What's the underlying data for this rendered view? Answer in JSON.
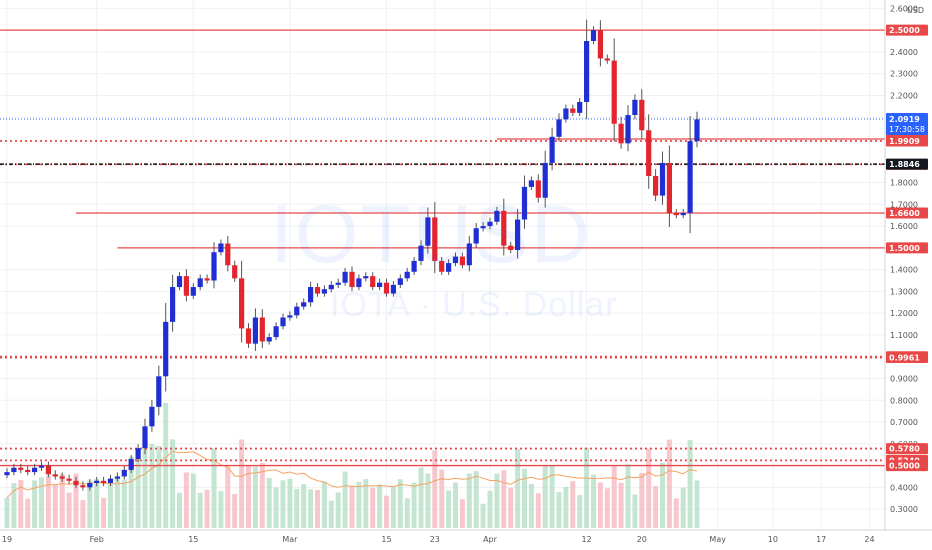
{
  "watermark": {
    "ticker": "IOTUSD",
    "description": "IOTA · U.S. Dollar"
  },
  "colors": {
    "up": "#1f2fd4",
    "down": "#e3252e",
    "level": "#e84848",
    "volume_up": "#b5dec7",
    "volume_down": "#f6b8c0",
    "volume_ma": "#f4a460",
    "grid": "#eef0f4",
    "axis_text": "#555555",
    "current": "#2962ff"
  },
  "chart_data": {
    "type": "candlestick",
    "currency": "USD",
    "price_axis": {
      "ylim": [
        0.25,
        2.62
      ],
      "ticks": [
        "2.6000",
        "2.4000",
        "2.3000",
        "2.2000",
        "2.1000",
        "1.8000",
        "1.7000",
        "1.6000",
        "1.4000",
        "1.3000",
        "1.2000",
        "1.1000",
        "0.9000",
        "0.8000",
        "0.7000",
        "0.6000",
        "0.4000",
        "0.3000"
      ],
      "tick_values": [
        2.6,
        2.4,
        2.3,
        2.2,
        2.1,
        1.8,
        1.7,
        1.6,
        1.4,
        1.3,
        1.2,
        1.1,
        0.9,
        0.8,
        0.7,
        0.6,
        0.4,
        0.3
      ]
    },
    "time_axis": {
      "labels": [
        "19",
        "Feb",
        "15",
        "Mar",
        "15",
        "23",
        "Apr",
        "12",
        "20",
        "May",
        "10",
        "17",
        "24"
      ],
      "label_index": [
        0,
        13,
        27,
        41,
        55,
        62,
        70,
        84,
        92,
        103,
        111,
        118,
        125
      ]
    },
    "current_price": {
      "value": 2.0919,
      "label": "2.0919",
      "countdown": "17:30:58"
    },
    "cursor_price": {
      "value": 1.8846,
      "label": "1.8846"
    },
    "levels": [
      {
        "value": 2.5,
        "label": "2.5000",
        "style": "solid",
        "start_index": 0
      },
      {
        "value": 2.0,
        "label": "2.0000",
        "style": "solid",
        "start_index": 71
      },
      {
        "value": 1.9909,
        "label": "1.9909",
        "style": "dotted",
        "start_index": 0
      },
      {
        "value": 1.8835,
        "label": "1.8835",
        "style": "dotted",
        "start_index": 0
      },
      {
        "value": 1.66,
        "label": "1.6600",
        "style": "solid",
        "start_index": 10
      },
      {
        "value": 1.5,
        "label": "1.5000",
        "style": "solid",
        "start_index": 16
      },
      {
        "value": 1.0,
        "label": "1.0000",
        "style": "dotted",
        "start_index": 0
      },
      {
        "value": 0.9961,
        "label": "0.9961",
        "style": "dotted",
        "start_index": 0
      },
      {
        "value": 0.578,
        "label": "0.5780",
        "style": "dotted",
        "start_index": 0
      },
      {
        "value": 0.524,
        "label": "0.5240",
        "style": "dotted",
        "start_index": 0
      },
      {
        "value": 0.5,
        "label": "0.5000",
        "style": "solid",
        "start_index": 0
      }
    ],
    "close": [
      0.47,
      0.49,
      0.48,
      0.47,
      0.49,
      0.5,
      0.46,
      0.45,
      0.44,
      0.43,
      0.41,
      0.4,
      0.42,
      0.43,
      0.42,
      0.44,
      0.45,
      0.48,
      0.53,
      0.58,
      0.68,
      0.77,
      0.91,
      1.16,
      1.32,
      1.37,
      1.28,
      1.32,
      1.36,
      1.35,
      1.48,
      1.52,
      1.42,
      1.36,
      1.13,
      1.06,
      1.18,
      1.07,
      1.09,
      1.14,
      1.18,
      1.19,
      1.23,
      1.25,
      1.32,
      1.29,
      1.31,
      1.33,
      1.34,
      1.39,
      1.32,
      1.36,
      1.37,
      1.32,
      1.34,
      1.29,
      1.33,
      1.36,
      1.39,
      1.44,
      1.51,
      1.64,
      1.44,
      1.39,
      1.43,
      1.46,
      1.42,
      1.52,
      1.59,
      1.6,
      1.62,
      1.67,
      1.51,
      1.49,
      1.63,
      1.78,
      1.81,
      1.73,
      1.89,
      2.01,
      2.09,
      2.14,
      2.12,
      2.17,
      2.45,
      2.5,
      2.37,
      2.36,
      2.07,
      1.98,
      2.11,
      2.18,
      2.04,
      1.83,
      1.74,
      1.89,
      1.66,
      1.65,
      1.66,
      1.99,
      2.09
    ]
  }
}
